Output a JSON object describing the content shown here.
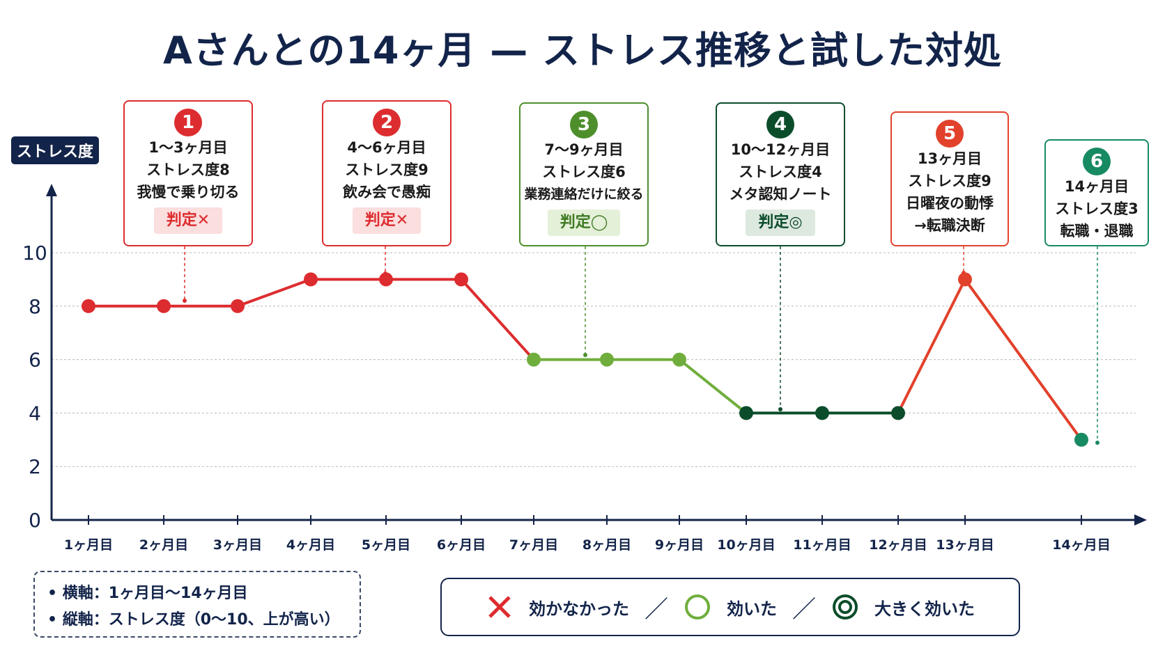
{
  "title": "Aさんとの14ヶ月 — ストレス推移と試した対処",
  "y_axis_label": "ストレス度",
  "colors": {
    "red": "#dd2c2f",
    "orange_red": "#e2412b",
    "light_green": "#6fae3c",
    "dark_green": "#0b4d2a",
    "teal": "#178a62",
    "navy": "#13244a"
  },
  "chart_data": {
    "type": "line",
    "x": [
      "1ヶ月目",
      "2ヶ月目",
      "3ヶ月目",
      "4ヶ月目",
      "5ヶ月目",
      "6ヶ月目",
      "7ヶ月目",
      "8ヶ月目",
      "9ヶ月目",
      "10ヶ月目",
      "11ヶ月目",
      "12ヶ月目",
      "13ヶ月目",
      "14ヶ月目"
    ],
    "values": [
      8,
      8,
      8,
      9,
      9,
      9,
      6,
      6,
      6,
      4,
      4,
      4,
      9,
      3
    ],
    "yticks": [
      0,
      2,
      4,
      6,
      8,
      10
    ],
    "ylim": [
      0,
      10
    ],
    "ylabel": "ストレス度",
    "grid": true
  },
  "annotations": [
    {
      "num": "1",
      "lines": [
        "1〜3ヶ月目",
        "ストレス度8",
        "我慢で乗り切る"
      ],
      "badge": "判定✕",
      "color": "#dd2c2f",
      "badge_bg": "#fbdede",
      "badge_fg": "#dd2c2f"
    },
    {
      "num": "2",
      "lines": [
        "4〜6ヶ月目",
        "ストレス度9",
        "飲み会で愚痴"
      ],
      "badge": "判定✕",
      "color": "#dd2c2f",
      "badge_bg": "#fbdede",
      "badge_fg": "#dd2c2f"
    },
    {
      "num": "3",
      "lines": [
        "7〜9ヶ月目",
        "ストレス度6",
        "業務連絡だけに絞る"
      ],
      "badge": "判定◯",
      "color": "#4e8f2c",
      "badge_bg": "#e4f0d8",
      "badge_fg": "#3f7a24"
    },
    {
      "num": "4",
      "lines": [
        "10〜12ヶ月目",
        "ストレス度4",
        "メタ認知ノート"
      ],
      "badge": "判定◎",
      "color": "#0b4d2a",
      "badge_bg": "#dde8df",
      "badge_fg": "#0b4d2a"
    },
    {
      "num": "5",
      "lines": [
        "13ヶ月目",
        "ストレス度9",
        "日曜夜の動悸",
        "→転職決断"
      ],
      "badge": "",
      "color": "#e2412b"
    },
    {
      "num": "6",
      "lines": [
        "14ヶ月目",
        "ストレス度3",
        "転職・退職"
      ],
      "badge": "",
      "color": "#178a62"
    }
  ],
  "notes": [
    "• 横軸：1ヶ月目〜14ヶ月目",
    "• 縦軸：ストレス度（0〜10、上が高い）"
  ],
  "legend": [
    {
      "symbol": "cross-icon",
      "label": "効かなかった"
    },
    {
      "symbol": "circle-icon",
      "label": "効いた"
    },
    {
      "symbol": "double-circle-icon",
      "label": "大きく効いた"
    }
  ],
  "legend_separator": "／"
}
